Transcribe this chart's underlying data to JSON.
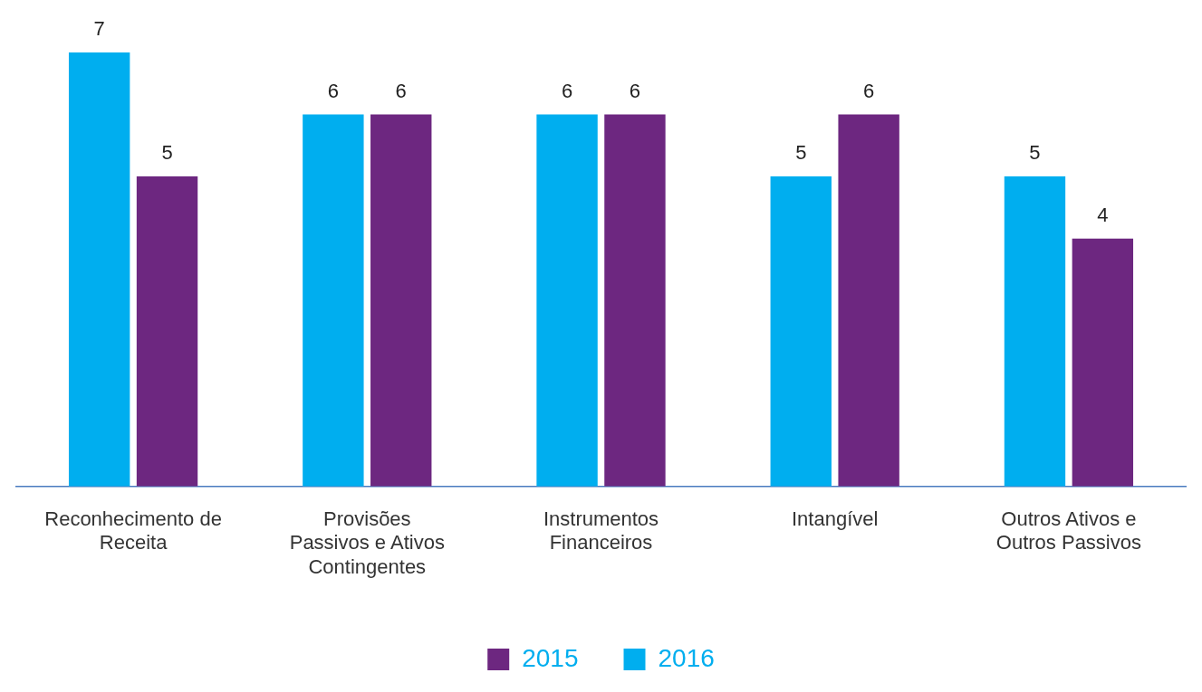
{
  "chart_data": {
    "type": "bar",
    "categories": [
      "Reconhecimento de Receita",
      "Provisões Passivos e Ativos Contingentes",
      "Instrumentos Financeiros",
      "Intangível",
      "Outros Ativos e Outros Passivos"
    ],
    "series": [
      {
        "name": "2016",
        "color": "#00aeef",
        "values": [
          7,
          6,
          6,
          5,
          5
        ]
      },
      {
        "name": "2015",
        "color": "#6d2780",
        "values": [
          5,
          6,
          6,
          6,
          4
        ]
      }
    ],
    "data_labels": true,
    "grid": false,
    "legend": "bottom"
  }
}
